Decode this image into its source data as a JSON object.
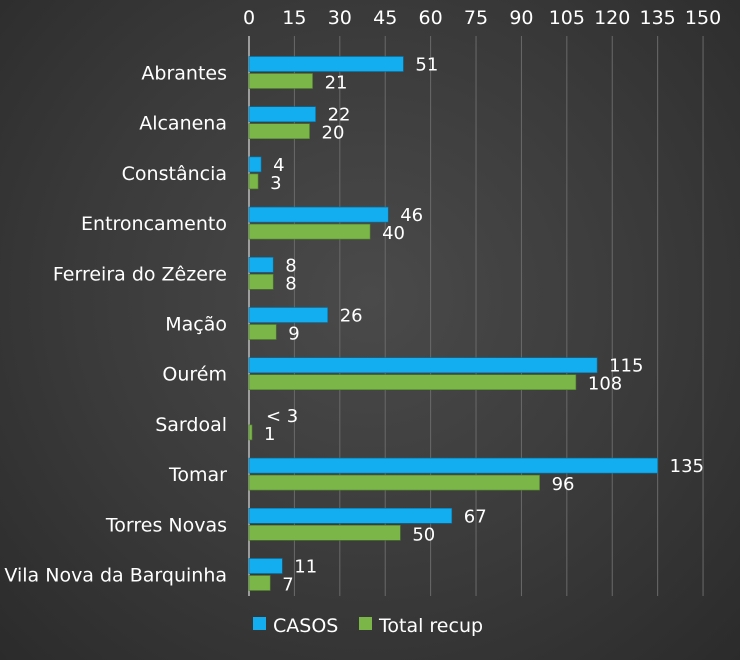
{
  "chart_data": {
    "type": "bar",
    "orientation": "horizontal",
    "categories": [
      "Abrantes",
      "Alcanena",
      "Constância",
      "Entroncamento",
      "Ferreira do Zêzere",
      "Mação",
      "Ourém",
      "Sardoal",
      "Tomar",
      "Torres Novas",
      "Vila Nova da Barquinha"
    ],
    "series": [
      {
        "name": "CASOS",
        "color": "#12aef0",
        "values": [
          51,
          22,
          4,
          46,
          8,
          26,
          115,
          null,
          135,
          67,
          11
        ],
        "labels": [
          "51",
          "22",
          "4",
          "46",
          "8",
          "26",
          "115",
          "< 3",
          "135",
          "67",
          "11"
        ]
      },
      {
        "name": "Total recup",
        "color": "#7ab648",
        "values": [
          21,
          20,
          3,
          40,
          8,
          9,
          108,
          1,
          96,
          50,
          7
        ],
        "labels": [
          "21",
          "20",
          "3",
          "40",
          "8",
          "9",
          "108",
          "1",
          "96",
          "50",
          "7"
        ]
      }
    ],
    "x_ticks": [
      "0",
      "15",
      "30",
      "45",
      "60",
      "75",
      "90",
      "105",
      "120",
      "135",
      "150"
    ],
    "xlim": [
      0,
      150
    ],
    "axis_position": "top",
    "grid": true,
    "legend_position": "bottom"
  }
}
